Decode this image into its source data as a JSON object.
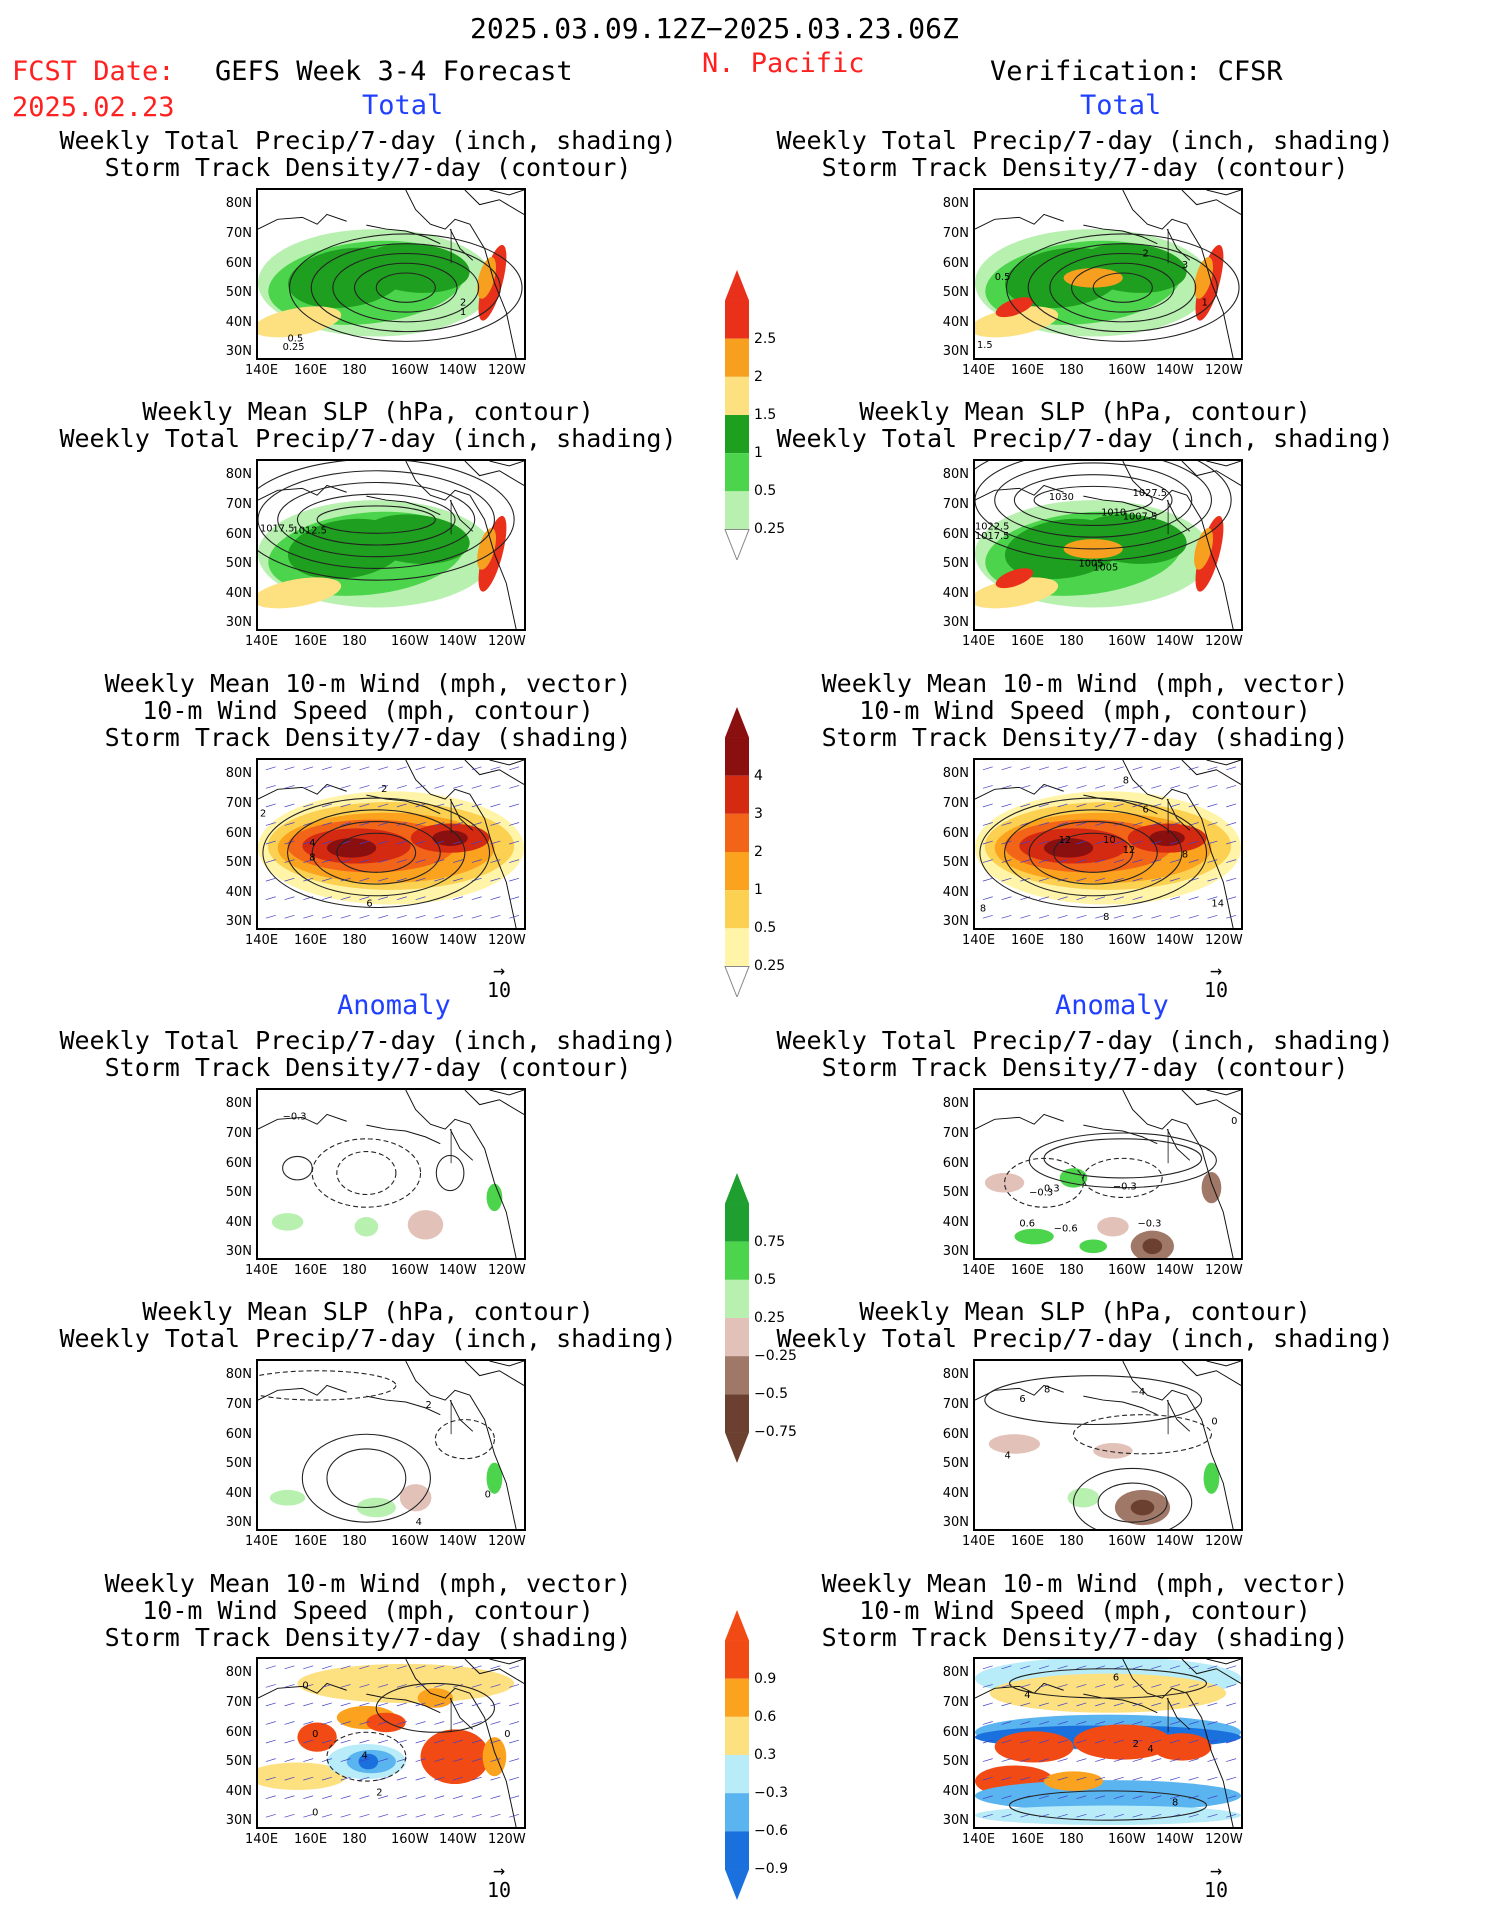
{
  "header": {
    "date_range": "2025.03.09.12Z−2025.03.23.06Z",
    "fcst_label": "FCST Date:",
    "fcst_date": "2025.02.23",
    "model_title": "GEFS Week 3-4 Forecast",
    "region": "N. Pacific",
    "verification": "Verification: CFSR"
  },
  "sections": {
    "total": "Total",
    "anomaly": "Anomaly"
  },
  "titles": {
    "precip_storm": [
      "Weekly Total Precip/7-day (inch, shading)",
      "Storm Track Density/7-day (contour)"
    ],
    "slp_precip": [
      "Weekly Mean SLP (hPa, contour)",
      "Weekly Total Precip/7-day (inch, shading)"
    ],
    "wind_storm": [
      "Weekly Mean 10-m Wind (mph, vector)",
      "10-m Wind Speed (mph, contour)",
      "Storm Track Density/7-day (shading)"
    ]
  },
  "axes": {
    "lat_ticks": [
      "80N",
      "70N",
      "60N",
      "50N",
      "40N",
      "30N"
    ],
    "lon_ticks": [
      "140E",
      "160E",
      "180",
      "160W",
      "140W",
      "120W"
    ],
    "vector_ref": "10"
  },
  "colorbars": {
    "precip_total": {
      "labels": [
        "2.5",
        "2",
        "1.5",
        "1",
        "0.5",
        "0.25"
      ],
      "colors": [
        "#e8301a",
        "#f7a020",
        "#fde080",
        "#1f9f1f",
        "#4cd44c",
        "#b8f0b0"
      ]
    },
    "storm_total": {
      "labels": [
        "4",
        "3",
        "2",
        "1",
        "0.5",
        "0.25"
      ],
      "colors": [
        "#8a0f0f",
        "#d42a12",
        "#f26418",
        "#fba21e",
        "#fcd050",
        "#fff4a8"
      ]
    },
    "precip_anom": {
      "labels": [
        "0.75",
        "0.5",
        "0.25",
        "−0.25",
        "−0.5",
        "−0.75"
      ],
      "colors": [
        "#1f9f2f",
        "#4cd44c",
        "#b8f0b0",
        "#e2c2b8",
        "#a07868",
        "#6b4030"
      ]
    },
    "storm_anom": {
      "labels": [
        "0.9",
        "0.6",
        "0.3",
        "−0.3",
        "−0.6",
        "−0.9"
      ],
      "colors": [
        "#f24a14",
        "#fba21e",
        "#fde080",
        "#b8ecf8",
        "#5ab4f0",
        "#1a70dc"
      ]
    }
  },
  "contour_labels": {
    "p1": [
      "2",
      "1",
      "0.5",
      "0.25"
    ],
    "p2": [
      "2",
      "3",
      "1",
      "0.5",
      "1.5"
    ],
    "p3": [
      "1017.5",
      "1012.5"
    ],
    "p4": [
      "1030",
      "1027.5",
      "1010",
      "1007.5",
      "1022.5",
      "1017.5",
      "1005",
      "1005"
    ],
    "p5": [
      "2",
      "4",
      "8",
      "2",
      "6"
    ],
    "p6": [
      "8",
      "6",
      "12",
      "10",
      "12",
      "8",
      "8",
      "14",
      "8"
    ],
    "p7": [
      "−0.3"
    ],
    "p8": [
      "−0.3",
      "0.3",
      "−0.3",
      "0.6",
      "−0.6",
      "−0.3",
      "0"
    ],
    "p9": [
      "2",
      "0",
      "4"
    ],
    "p10": [
      "6",
      "8",
      "−4",
      "4",
      "0"
    ],
    "p11": [
      "0",
      "4",
      "0",
      "0",
      "2",
      "0"
    ],
    "p12": [
      "6",
      "4",
      "2",
      "4",
      "8"
    ]
  }
}
